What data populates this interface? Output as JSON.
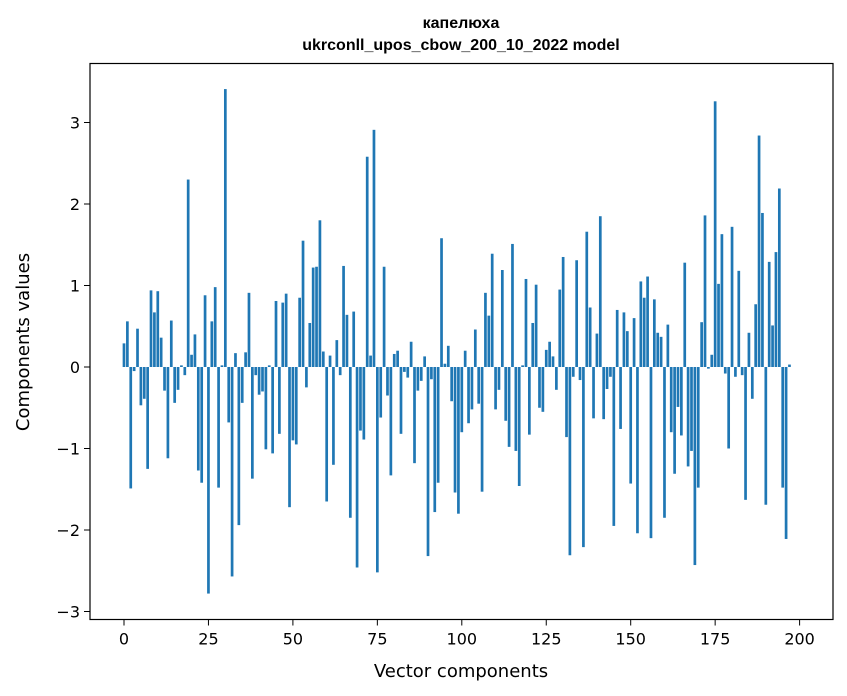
{
  "chart_data": {
    "type": "bar",
    "title": "капелюха",
    "subtitle": "ukrconll_upos_cbow_200_10_2022 model",
    "xlabel": "Vector components",
    "ylabel": "Components values",
    "xlim": [
      -10,
      210
    ],
    "ylim": [
      -3.1,
      3.7
    ],
    "xticks": [
      0,
      25,
      50,
      75,
      100,
      125,
      150,
      175,
      200
    ],
    "yticks": [
      -3,
      -2,
      -1,
      0,
      1,
      2,
      3
    ],
    "ytick_labels": [
      "−3",
      "−2",
      "−1",
      "0",
      "1",
      "2",
      "3"
    ],
    "grid": false,
    "bar_color": "#1f77b4",
    "values": [
      0.29,
      0.56,
      -1.49,
      -0.05,
      0.47,
      -0.47,
      -0.39,
      -1.25,
      0.94,
      0.67,
      0.93,
      0.36,
      -0.29,
      -1.12,
      0.57,
      -0.44,
      -0.28,
      0.02,
      -0.1,
      2.3,
      0.15,
      0.4,
      -1.27,
      -1.42,
      0.88,
      -2.78,
      0.56,
      0.98,
      -1.48,
      0.02,
      3.41,
      -0.68,
      -2.57,
      0.17,
      -1.94,
      -0.44,
      0.18,
      0.91,
      -1.37,
      -0.1,
      -0.34,
      -0.3,
      -1.01,
      0.02,
      -1.06,
      0.81,
      -0.82,
      0.79,
      0.9,
      -1.72,
      -0.9,
      -0.95,
      0.85,
      1.55,
      -0.25,
      0.54,
      1.22,
      1.23,
      1.8,
      0.19,
      -1.65,
      0.14,
      -1.2,
      0.33,
      -0.1,
      1.24,
      0.64,
      -1.85,
      0.68,
      -2.46,
      -0.78,
      -0.89,
      2.58,
      0.14,
      2.91,
      -2.52,
      -0.62,
      1.23,
      -0.35,
      -1.33,
      0.16,
      0.2,
      -0.82,
      -0.06,
      -0.13,
      0.31,
      -1.18,
      -0.29,
      -0.17,
      0.13,
      -2.32,
      -0.15,
      -1.78,
      -1.42,
      1.58,
      0.04,
      0.26,
      -0.42,
      -1.54,
      -1.8,
      -0.8,
      0.2,
      -0.69,
      -0.52,
      0.46,
      -0.45,
      -1.53,
      0.91,
      0.63,
      1.39,
      -0.52,
      -0.28,
      1.19,
      -0.66,
      -0.98,
      1.51,
      -1.03,
      -1.46,
      0.02,
      1.08,
      -0.83,
      0.54,
      1.01,
      -0.5,
      -0.55,
      0.21,
      0.31,
      0.13,
      -0.28,
      0.95,
      1.35,
      -0.86,
      -2.31,
      -0.12,
      1.31,
      -0.16,
      -2.21,
      1.66,
      0.73,
      -0.63,
      0.41,
      1.85,
      -0.64,
      -0.27,
      -0.12,
      -1.95,
      0.7,
      -0.76,
      0.67,
      0.44,
      -1.43,
      0.6,
      -2.04,
      1.05,
      0.85,
      1.11,
      -2.1,
      0.83,
      0.42,
      0.37,
      -1.85,
      0.52,
      -0.8,
      -1.31,
      -0.49,
      -0.84,
      1.28,
      -1.22,
      -1.03,
      -2.43,
      -1.48,
      0.55,
      1.86,
      -0.02,
      0.15,
      3.26,
      1.02,
      1.63,
      -0.08,
      -1.0,
      1.72,
      -0.12,
      1.18,
      -0.1,
      -1.63,
      0.42,
      -0.39,
      0.77,
      2.84,
      1.89,
      -1.69,
      1.29,
      0.51,
      1.41,
      2.19,
      -1.48,
      -2.11,
      0.03
    ]
  }
}
